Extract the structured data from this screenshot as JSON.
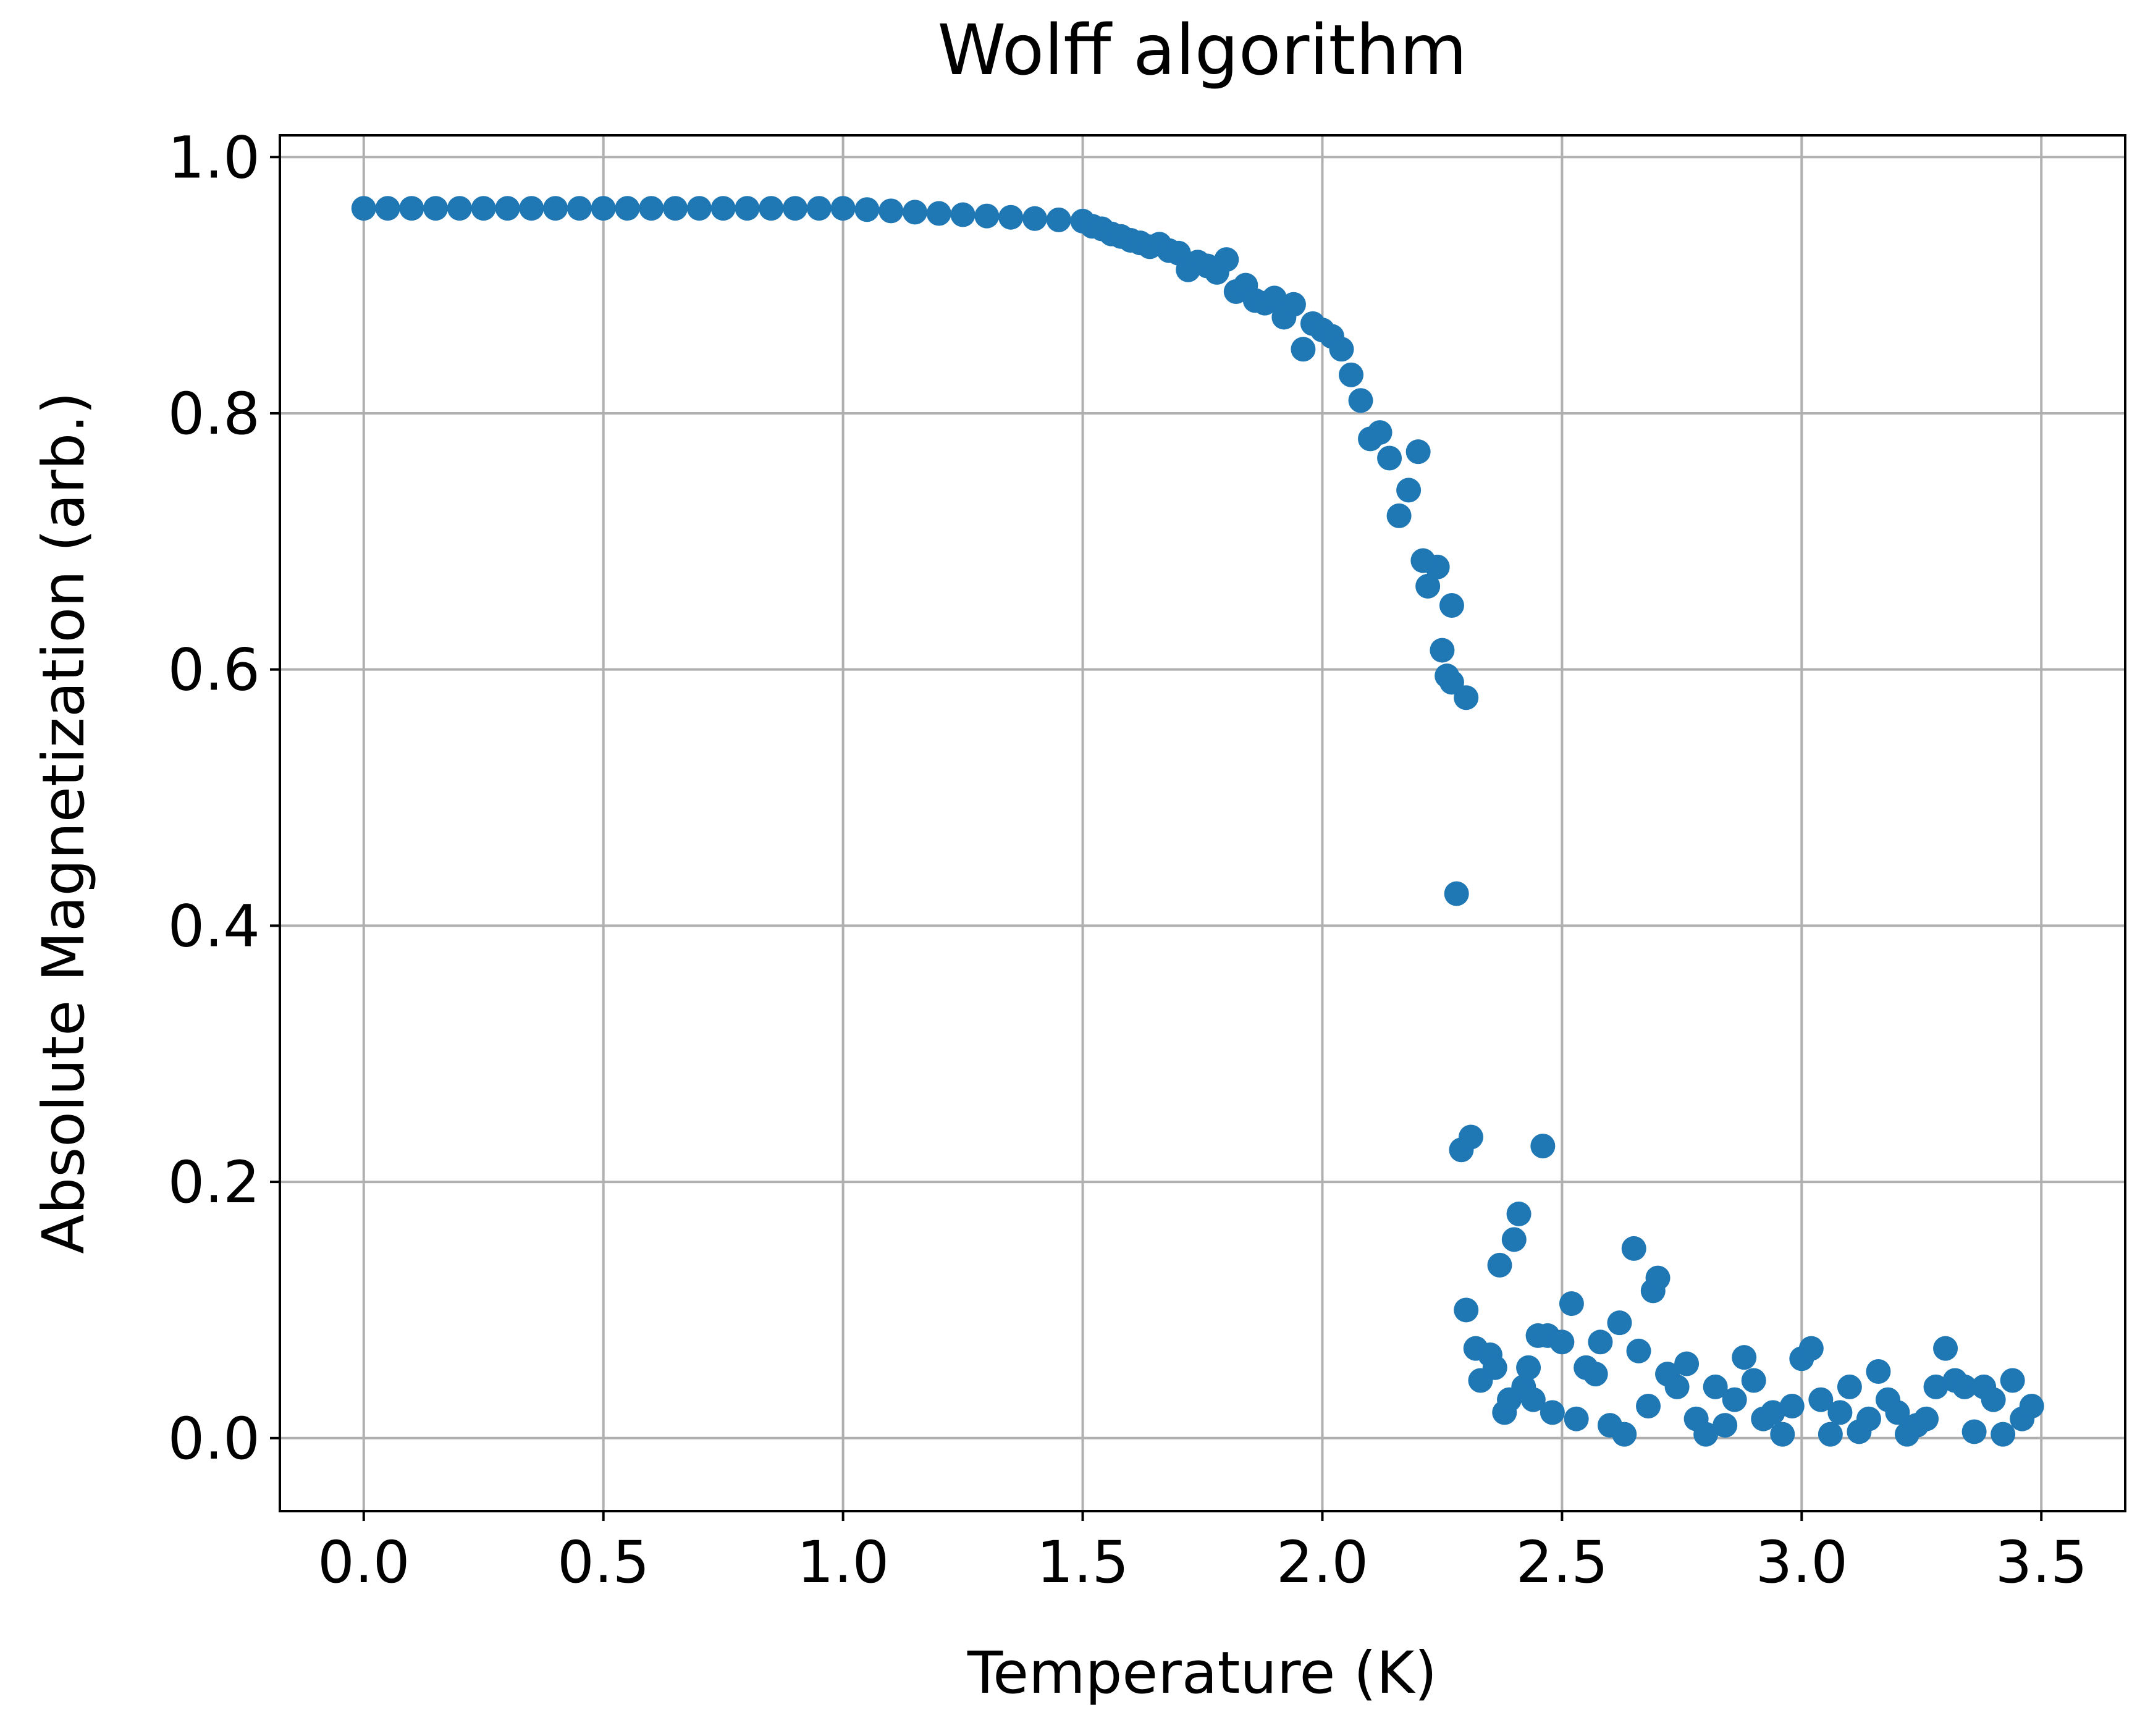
{
  "chart_data": {
    "type": "scatter",
    "title": "Wolff algorithm",
    "xlabel": "Temperature (K)",
    "ylabel": "Absolute Magnetization (arb.)",
    "color": "#1f77b4",
    "grid": true,
    "xlim": [
      -0.175,
      3.675
    ],
    "ylim": [
      -0.057,
      1.017
    ],
    "xticks": [
      {
        "value": 0,
        "label": "0.0"
      },
      0.5,
      {
        "value": 1,
        "label": "1.0"
      },
      1.5,
      {
        "value": 2,
        "label": "2.0"
      },
      2.5,
      {
        "value": 3,
        "label": "3.0"
      },
      3.5
    ],
    "yticks": [
      {
        "value": 0,
        "label": "0.0"
      },
      0.2,
      0.4,
      0.6,
      0.8,
      {
        "value": 1,
        "label": "1.0"
      }
    ],
    "x": [
      0,
      0.05,
      0.1,
      0.15,
      0.2,
      0.25,
      0.3,
      0.35,
      0.4,
      0.45,
      0.5,
      0.55,
      0.6,
      0.65,
      0.7,
      0.75,
      0.8,
      0.85,
      0.9,
      0.95,
      1.0,
      1.05,
      1.1,
      1.15,
      1.2,
      1.25,
      1.3,
      1.35,
      1.4,
      1.45,
      1.5,
      1.52,
      1.54,
      1.56,
      1.58,
      1.6,
      1.62,
      1.64,
      1.66,
      1.68,
      1.7,
      1.72,
      1.74,
      1.76,
      1.78,
      1.8,
      1.82,
      1.84,
      1.86,
      1.88,
      1.9,
      1.92,
      1.94,
      1.96,
      1.98,
      2.0,
      2.02,
      2.04,
      2.06,
      2.08,
      2.1,
      2.12,
      2.14,
      2.16,
      2.18,
      2.2,
      2.22,
      2.24,
      2.26,
      2.28,
      2.3,
      2.21,
      2.25,
      2.27,
      2.27,
      2.29,
      2.31,
      2.3,
      2.32,
      2.33,
      2.35,
      2.36,
      2.37,
      2.38,
      2.39,
      2.4,
      2.41,
      2.42,
      2.43,
      2.44,
      2.45,
      2.46,
      2.47,
      2.48,
      2.5,
      2.52,
      2.53,
      2.55,
      2.57,
      2.58,
      2.6,
      2.62,
      2.63,
      2.65,
      2.66,
      2.68,
      2.69,
      2.7,
      2.72,
      2.74,
      2.76,
      2.78,
      2.8,
      2.82,
      2.84,
      2.86,
      2.88,
      2.9,
      2.92,
      2.94,
      2.96,
      2.98,
      3.0,
      3.02,
      3.04,
      3.06,
      3.08,
      3.1,
      3.12,
      3.14,
      3.16,
      3.18,
      3.2,
      3.22,
      3.24,
      3.26,
      3.28,
      3.3,
      3.32,
      3.34,
      3.36,
      3.38,
      3.4,
      3.42,
      3.44,
      3.46,
      3.48
    ],
    "values": [
      0.96,
      0.96,
      0.96,
      0.96,
      0.96,
      0.96,
      0.96,
      0.96,
      0.96,
      0.96,
      0.96,
      0.96,
      0.96,
      0.96,
      0.96,
      0.96,
      0.96,
      0.96,
      0.96,
      0.96,
      0.96,
      0.959,
      0.958,
      0.957,
      0.956,
      0.955,
      0.954,
      0.953,
      0.952,
      0.951,
      0.95,
      0.946,
      0.944,
      0.94,
      0.938,
      0.935,
      0.933,
      0.93,
      0.932,
      0.927,
      0.925,
      0.912,
      0.918,
      0.915,
      0.91,
      0.92,
      0.895,
      0.9,
      0.888,
      0.886,
      0.89,
      0.875,
      0.885,
      0.85,
      0.87,
      0.865,
      0.86,
      0.85,
      0.83,
      0.81,
      0.78,
      0.785,
      0.765,
      0.72,
      0.74,
      0.77,
      0.665,
      0.68,
      0.595,
      0.425,
      0.578,
      0.685,
      0.615,
      0.65,
      0.59,
      0.225,
      0.235,
      0.1,
      0.07,
      0.045,
      0.065,
      0.055,
      0.135,
      0.02,
      0.03,
      0.155,
      0.175,
      0.04,
      0.055,
      0.03,
      0.08,
      0.228,
      0.08,
      0.02,
      0.075,
      0.105,
      0.015,
      0.055,
      0.05,
      0.075,
      0.01,
      0.09,
      0.003,
      0.148,
      0.068,
      0.025,
      0.115,
      0.125,
      0.05,
      0.04,
      0.058,
      0.015,
      0.003,
      0.04,
      0.01,
      0.03,
      0.063,
      0.045,
      0.015,
      0.02,
      0.003,
      0.025,
      0.062,
      0.07,
      0.03,
      0.003,
      0.02,
      0.04,
      0.005,
      0.015,
      0.052,
      0.03,
      0.02,
      0.003,
      0.01,
      0.015,
      0.04,
      0.07,
      0.045,
      0.04,
      0.005,
      0.04,
      0.03,
      0.003,
      0.045,
      0.015,
      0.025
    ]
  }
}
